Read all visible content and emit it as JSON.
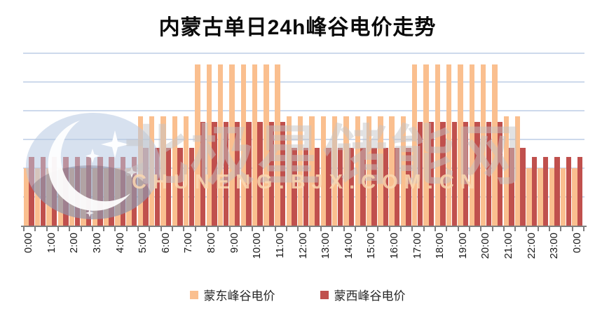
{
  "title": "内蒙古单日24h峰谷电价走势",
  "chart_data": {
    "type": "bar",
    "title": "内蒙古单日24h峰谷电价走势",
    "categories": [
      "0:00",
      "0:30",
      "1:00",
      "1:30",
      "2:00",
      "2:30",
      "3:00",
      "3:30",
      "4:00",
      "4:30",
      "5:00",
      "5:30",
      "6:00",
      "6:30",
      "7:00",
      "7:30",
      "8:00",
      "8:30",
      "9:00",
      "9:30",
      "10:00",
      "10:30",
      "11:00",
      "11:30",
      "12:00",
      "12:30",
      "13:00",
      "13:30",
      "14:00",
      "14:30",
      "15:00",
      "15:30",
      "16:00",
      "16:30",
      "17:00",
      "17:30",
      "18:00",
      "18:30",
      "19:00",
      "19:30",
      "20:00",
      "20:30",
      "21:00",
      "21:30",
      "22:00",
      "22:30",
      "23:00",
      "23:30",
      "0:00"
    ],
    "x_tick_labels": [
      "0:00",
      "1:00",
      "2:00",
      "3:00",
      "4:00",
      "5:00",
      "6:00",
      "7:00",
      "8:00",
      "9:00",
      "10:00",
      "11:00",
      "12:00",
      "13:00",
      "14:00",
      "15:00",
      "16:00",
      "17:00",
      "18:00",
      "19:00",
      "20:00",
      "21:00",
      "22:00",
      "23:00",
      "0:00"
    ],
    "series": [
      {
        "name": "蒙东峰谷电价",
        "color": "#FABF8F",
        "values": [
          0.2,
          0.2,
          0.2,
          0.2,
          0.2,
          0.2,
          0.2,
          0.2,
          0.2,
          0.2,
          0.38,
          0.38,
          0.38,
          0.38,
          0.38,
          0.56,
          0.56,
          0.56,
          0.56,
          0.56,
          0.56,
          0.56,
          0.56,
          0.38,
          0.38,
          0.38,
          0.38,
          0.38,
          0.38,
          0.38,
          0.38,
          0.38,
          0.38,
          0.38,
          0.56,
          0.56,
          0.56,
          0.56,
          0.56,
          0.56,
          0.56,
          0.56,
          0.38,
          0.38,
          0.2,
          0.2,
          0.2,
          0.2,
          0.2
        ]
      },
      {
        "name": "蒙西峰谷电价",
        "color": "#C0504D",
        "values": [
          0.24,
          0.24,
          0.24,
          0.24,
          0.24,
          0.24,
          0.24,
          0.24,
          0.24,
          0.24,
          0.27,
          0.27,
          0.27,
          0.27,
          0.27,
          0.36,
          0.36,
          0.36,
          0.36,
          0.36,
          0.36,
          0.36,
          0.36,
          0.27,
          0.27,
          0.27,
          0.27,
          0.27,
          0.27,
          0.27,
          0.27,
          0.27,
          0.27,
          0.27,
          0.36,
          0.36,
          0.36,
          0.36,
          0.36,
          0.36,
          0.36,
          0.36,
          0.27,
          0.27,
          0.24,
          0.24,
          0.24,
          0.24,
          0.24
        ]
      }
    ],
    "ylim": [
      0,
      0.64
    ],
    "gridline_values": [
      0.1,
      0.2,
      0.3,
      0.4,
      0.5,
      0.6
    ],
    "y_axis_labels_visible": false,
    "y_values_estimated": true,
    "grid": "horizontal",
    "gridline_color": "#cdd9ec",
    "legend_position": "bottom"
  },
  "legend": {
    "items": [
      {
        "label": "蒙东峰谷电价",
        "color": "#FABF8F"
      },
      {
        "label": "蒙西峰谷电价",
        "color": "#C0504D"
      }
    ]
  },
  "watermark": {
    "logo": "bjx-crescent-star-logo",
    "text_cn": "北极星储能网",
    "text_en": "CHUNENG.BJX.COM.CN"
  },
  "colors": {
    "background": "#ffffff",
    "axis": "#7f7f7f",
    "tick_label": "#1a1a1a",
    "title_text": "#0a0a0a"
  }
}
